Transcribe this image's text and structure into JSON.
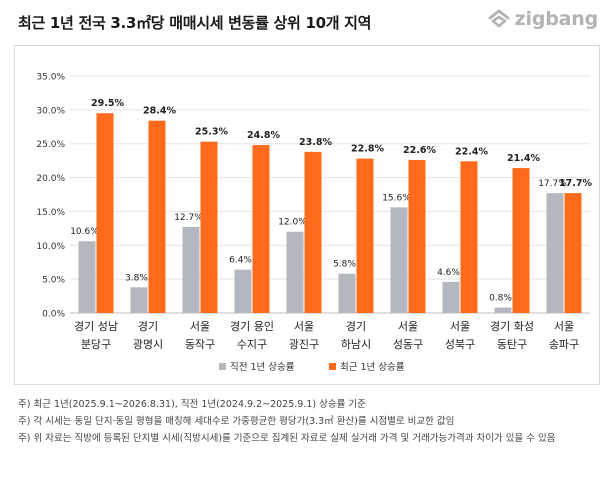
{
  "title": "최근 1년 전국 3.3㎡당 매매시세 변동률 상위 10개 지역",
  "brand": {
    "name": "zigbang",
    "color": "#b3b3b3",
    "icon": "zigbang-logo-icon"
  },
  "chart_data": {
    "type": "bar",
    "categories": [
      [
        "경기 성남",
        "분당구"
      ],
      [
        "경기",
        "광명시"
      ],
      [
        "서울",
        "동작구"
      ],
      [
        "경기 용인",
        "수지구"
      ],
      [
        "서울",
        "광진구"
      ],
      [
        "경기",
        "하남시"
      ],
      [
        "서울",
        "성동구"
      ],
      [
        "서울",
        "성북구"
      ],
      [
        "경기 화성",
        "동탄구"
      ],
      [
        "서울",
        "송파구"
      ]
    ],
    "series": [
      {
        "name": "직전 1년 상승률",
        "color": "#b4b7be",
        "values": [
          10.6,
          3.8,
          12.7,
          6.4,
          12.0,
          5.8,
          15.6,
          4.6,
          0.8,
          17.7
        ],
        "labels": [
          "10.6%",
          "3.8%",
          "12.7%",
          "6.4%",
          "12.0%",
          "5.8%",
          "15.6%",
          "4.6%",
          "0.8%",
          "17.7%"
        ]
      },
      {
        "name": "최근 1년 상승률",
        "color": "#ff6b1a",
        "values": [
          29.5,
          28.4,
          25.3,
          24.8,
          23.8,
          22.8,
          22.6,
          22.4,
          21.4,
          17.7
        ],
        "labels": [
          "29.5%",
          "28.4%",
          "25.3%",
          "24.8%",
          "23.8%",
          "22.8%",
          "22.6%",
          "22.4%",
          "21.4%",
          "17.7%"
        ]
      }
    ],
    "ylim": [
      0,
      35
    ],
    "yticks": [
      "0.0%",
      "5.0%",
      "10.0%",
      "15.0%",
      "20.0%",
      "25.0%",
      "30.0%",
      "35.0%"
    ],
    "ytick_values": [
      0,
      5,
      10,
      15,
      20,
      25,
      30,
      35
    ],
    "grid": true,
    "legend_position": "bottom-center"
  },
  "notes": [
    "주) 최근 1년(2025.9.1~2026.8.31), 직전 1년(2024.9.2~2025.9.1) 상승률 기준",
    "주) 각 시세는 동일 단지·동일 평형을 매칭해 세대수로 가중평균한 평당가(3.3㎡ 환산)를 시점별로 비교한 값임",
    "주) 위 자료는 직방에 등록된 단지별 시세(직방시세)를 기준으로 집계된 자료로 실제 실거래 가격 및 거래가능가격과 차이가 있을 수 있음"
  ]
}
